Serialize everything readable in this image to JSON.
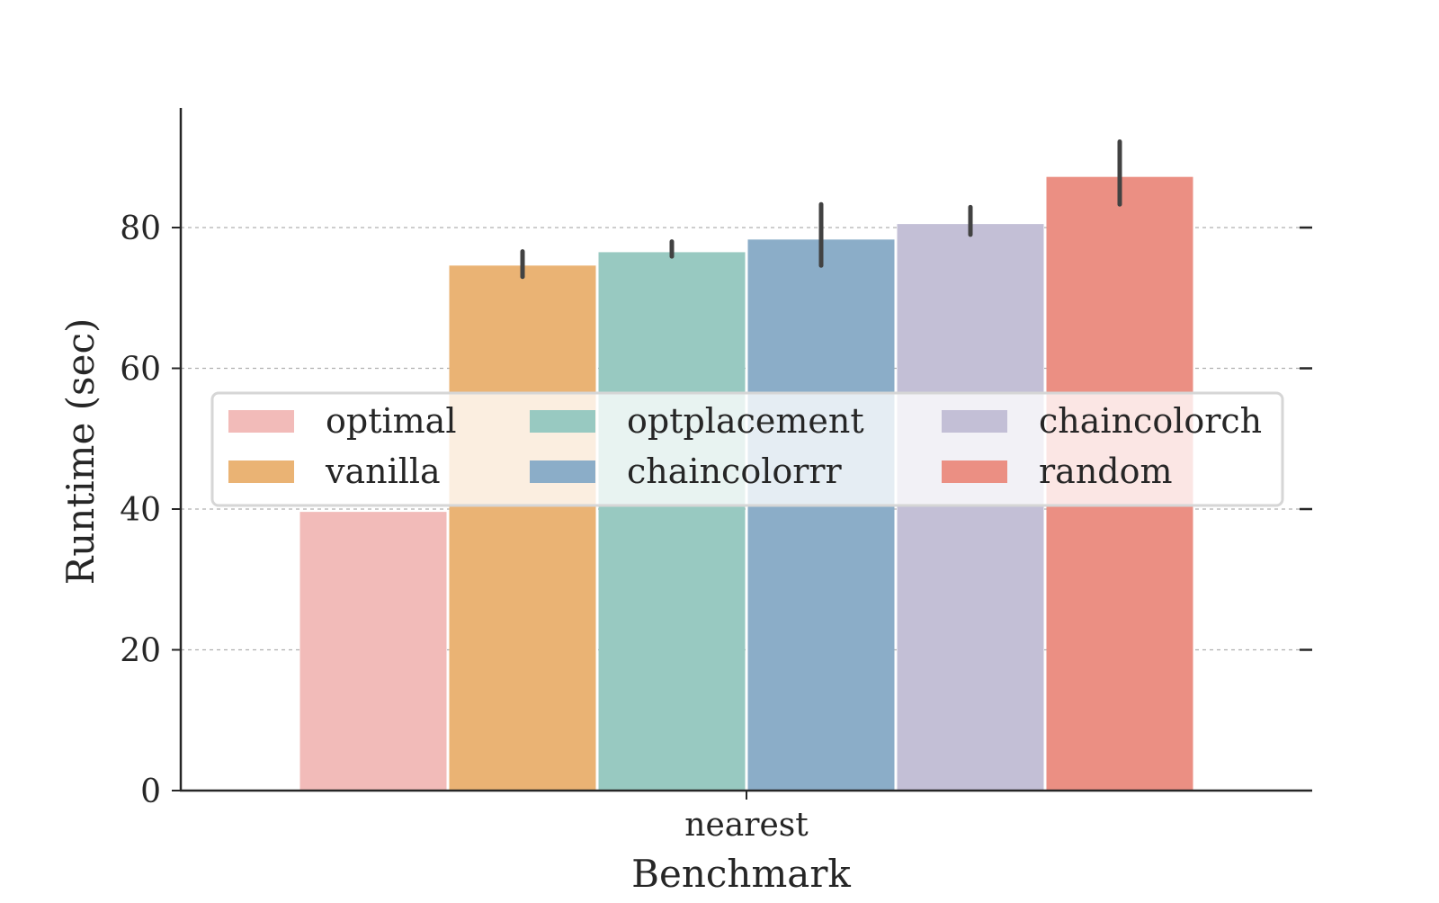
{
  "chart_data": {
    "type": "bar",
    "title": "",
    "xlabel": "Benchmark",
    "ylabel": "Runtime (sec)",
    "categories": [
      "nearest"
    ],
    "ylim": [
      0,
      97
    ],
    "yticks": [
      0,
      20,
      40,
      60,
      80
    ],
    "grid": {
      "y": true,
      "style": "dashed"
    },
    "legend": {
      "position": "center",
      "columns": 3
    },
    "series": [
      {
        "name": "optimal",
        "color": "#f2bbb9",
        "values": [
          39.6
        ],
        "error": [
          [
            39.6,
            39.6
          ]
        ]
      },
      {
        "name": "vanilla",
        "color": "#eab374",
        "values": [
          74.6
        ],
        "error": [
          [
            73.0,
            76.6
          ]
        ]
      },
      {
        "name": "optplacement",
        "color": "#98c9c1",
        "values": [
          76.5
        ],
        "error": [
          [
            75.9,
            78.0
          ]
        ]
      },
      {
        "name": "chaincolorrr",
        "color": "#8badc8",
        "values": [
          78.3
        ],
        "error": [
          [
            74.6,
            83.3
          ]
        ]
      },
      {
        "name": "chaincolorch",
        "color": "#c3bfd6",
        "values": [
          80.5
        ],
        "error": [
          [
            79.0,
            82.9
          ]
        ]
      },
      {
        "name": "random",
        "color": "#eb8f83",
        "values": [
          87.2
        ],
        "error": [
          [
            83.3,
            92.2
          ]
        ]
      }
    ]
  }
}
